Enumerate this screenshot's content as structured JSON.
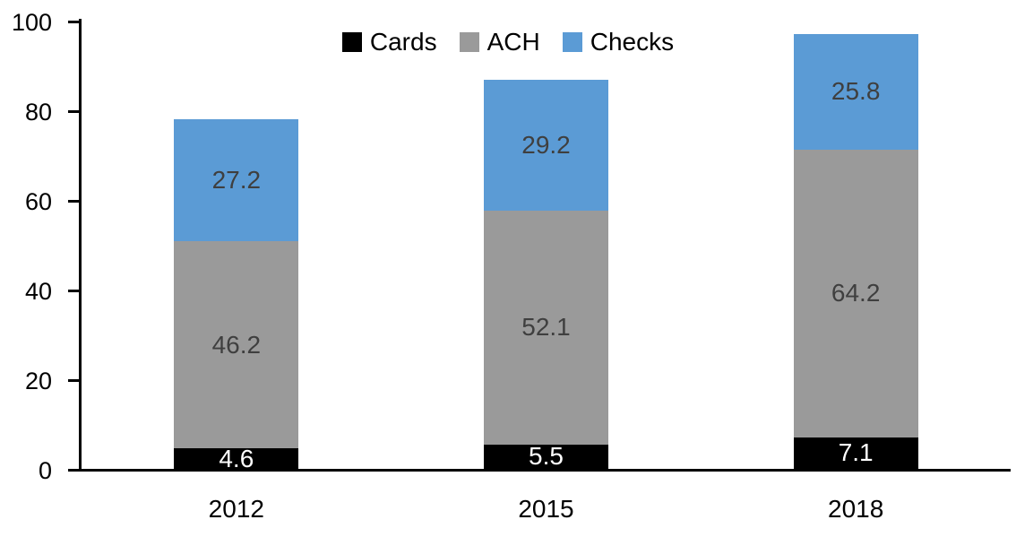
{
  "chart_data": {
    "type": "bar",
    "stacked": true,
    "title": "",
    "categories": [
      "2012",
      "2015",
      "2018"
    ],
    "series": [
      {
        "name": "Cards",
        "color": "#000000",
        "label_color": "#ffffff",
        "values": [
          4.6,
          5.5,
          7.1
        ]
      },
      {
        "name": "ACH",
        "color": "#9A9A9A",
        "label_color": "#3F3F3F",
        "values": [
          46.2,
          52.1,
          64.2
        ]
      },
      {
        "name": "Checks",
        "color": "#5B9BD5",
        "label_color": "#3F3F3F",
        "values": [
          27.2,
          29.2,
          25.8
        ]
      }
    ],
    "totals": [
      78.0,
      86.8,
      97.1
    ],
    "yticks": [
      0,
      20,
      40,
      60,
      80,
      100
    ],
    "ylim": [
      0,
      100
    ],
    "grid": false,
    "legend_position": "top-center",
    "value_format": "one-decimal",
    "axis_color": "#000000",
    "tick_label_color": "#000000",
    "category_label_color": "#000000",
    "background_color": "#ffffff"
  }
}
